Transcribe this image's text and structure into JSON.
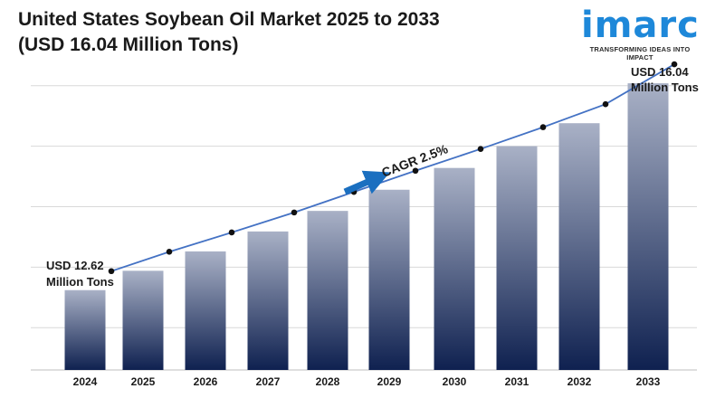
{
  "title_line1": "United States Soybean Oil Market 2025 to 2033",
  "title_line2": "(USD 16.04 Million Tons)",
  "logo": {
    "word": "imarc",
    "tagline": "TRANSFORMING IDEAS INTO IMPACT"
  },
  "colors": {
    "bar_top": "#a9b1c6",
    "bar_bottom": "#0f2150",
    "line": "#4472c4",
    "arrow": "#1a6fc0",
    "grid": "#d9d9d9"
  },
  "annotations": {
    "start_line1": "USD 12.62",
    "start_line2": "Million Tons",
    "end_line1": "USD 16.04",
    "end_line2": "Million Tons",
    "cagr": "CAGR 2.5%"
  },
  "chart_data": {
    "type": "bar",
    "title": "United States Soybean Oil Market 2025 to 2033",
    "subtitle": "(USD 16.04 Million Tons)",
    "categories": [
      "2024",
      "2025",
      "2026",
      "2027",
      "2028",
      "2029",
      "2030",
      "2031",
      "2032",
      "2033"
    ],
    "values": [
      12.62,
      12.94,
      13.26,
      13.59,
      13.93,
      14.28,
      14.64,
      15.0,
      15.38,
      16.04
    ],
    "ylim": [
      11.3,
      16.4
    ],
    "grid": true,
    "legend": "none",
    "trend_line": true
  }
}
